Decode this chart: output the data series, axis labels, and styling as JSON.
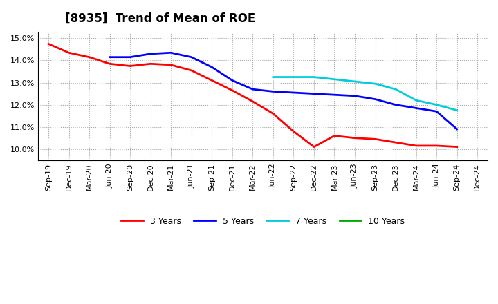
{
  "title": "[8935]  Trend of Mean of ROE",
  "ylim": [
    0.095,
    0.153
  ],
  "yticks": [
    0.1,
    0.11,
    0.12,
    0.13,
    0.14,
    0.15
  ],
  "background_color": "#ffffff",
  "grid_color": "#aaaaaa",
  "x_labels": [
    "Sep-19",
    "Dec-19",
    "Mar-20",
    "Jun-20",
    "Sep-20",
    "Dec-20",
    "Mar-21",
    "Jun-21",
    "Sep-21",
    "Dec-21",
    "Mar-22",
    "Jun-22",
    "Sep-22",
    "Dec-22",
    "Mar-23",
    "Jun-23",
    "Sep-23",
    "Dec-23",
    "Mar-24",
    "Jun-24",
    "Sep-24",
    "Dec-24"
  ],
  "series": [
    {
      "name": "3 Years",
      "color": "#ff0000",
      "y": [
        0.1475,
        0.1435,
        0.1415,
        0.1385,
        0.1375,
        0.1385,
        0.138,
        0.1355,
        0.131,
        0.1265,
        0.1215,
        0.116,
        0.108,
        0.101,
        0.106,
        0.105,
        0.1045,
        0.103,
        0.1015,
        0.1015,
        0.101,
        null
      ]
    },
    {
      "name": "5 Years",
      "color": "#0000ff",
      "y": [
        null,
        null,
        null,
        0.1415,
        0.1415,
        0.143,
        0.1435,
        0.1415,
        0.137,
        0.131,
        0.127,
        0.126,
        0.1255,
        0.125,
        0.1245,
        0.124,
        0.1225,
        0.12,
        0.1185,
        0.117,
        0.109,
        null
      ]
    },
    {
      "name": "7 Years",
      "color": "#00ccdd",
      "y": [
        null,
        null,
        null,
        null,
        null,
        null,
        null,
        null,
        null,
        null,
        null,
        0.1325,
        0.1325,
        0.1325,
        0.1315,
        0.1305,
        0.1295,
        0.127,
        0.122,
        0.12,
        0.1175,
        null
      ]
    },
    {
      "name": "10 Years",
      "color": "#00aa00",
      "y": []
    }
  ],
  "linewidth": 2.0
}
